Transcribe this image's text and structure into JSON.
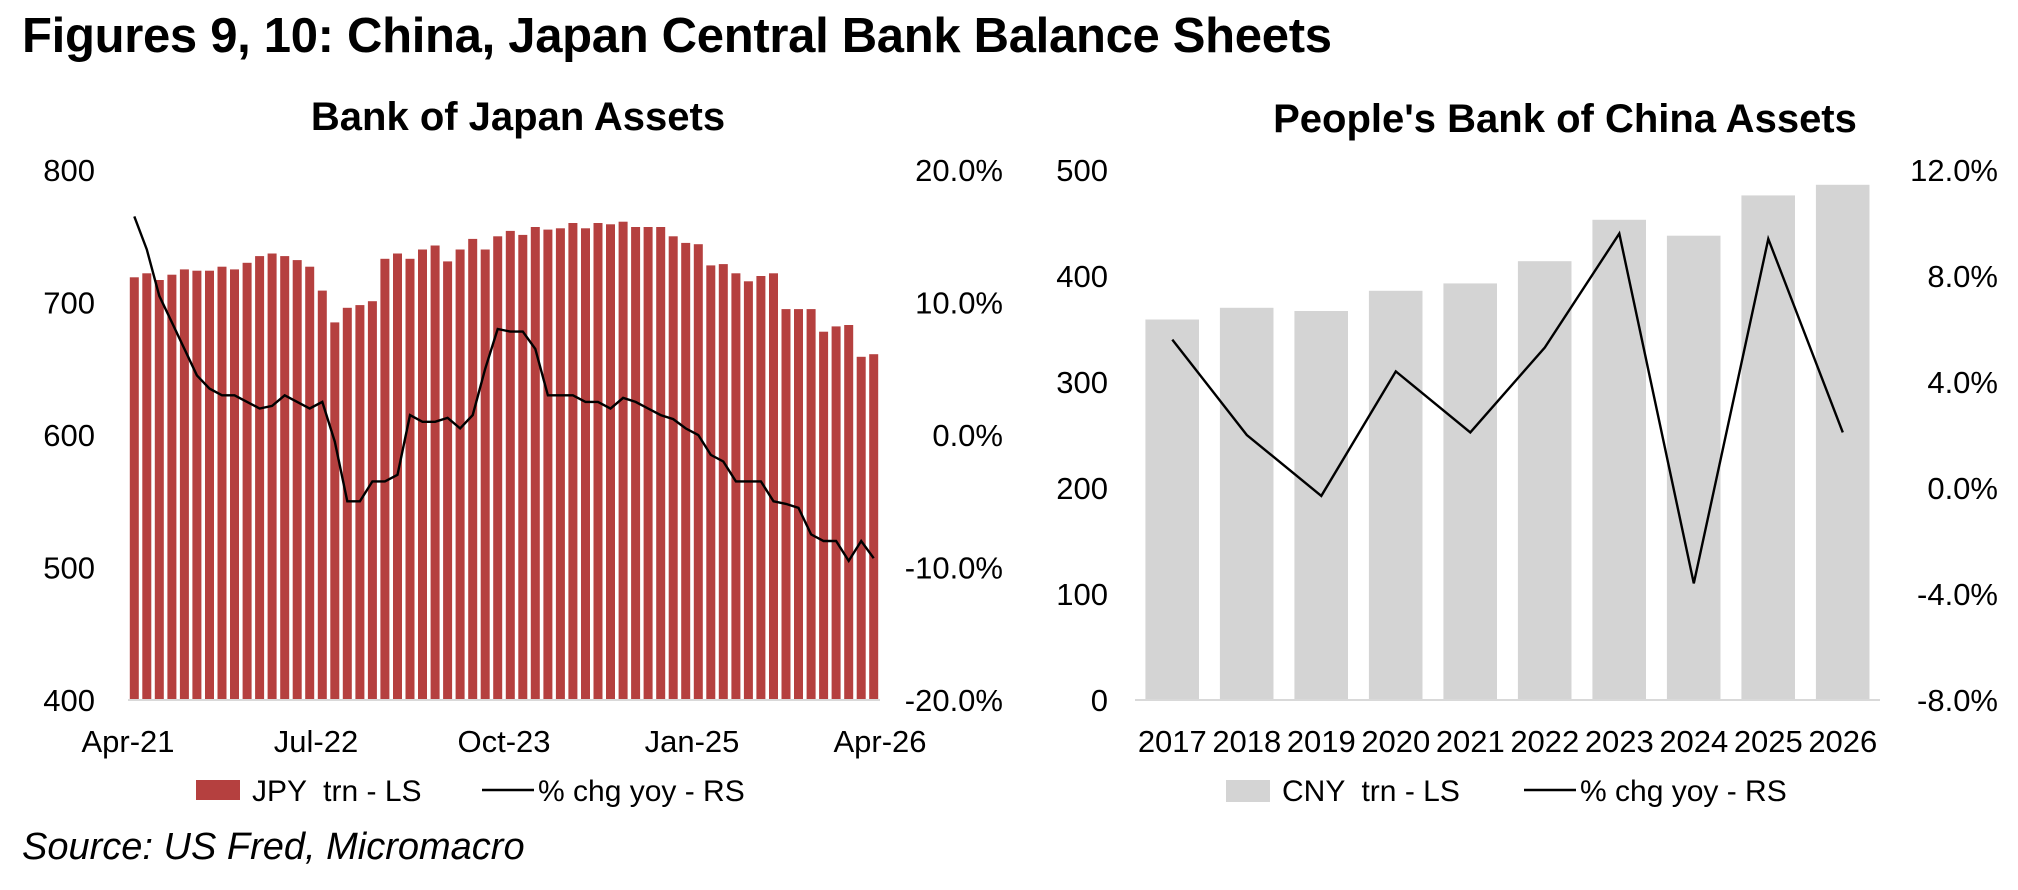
{
  "figure_title": "Figures 9, 10: China, Japan Central Bank Balance Sheets",
  "source": "Source: US Fred, Micromacro",
  "colors": {
    "boj_bar": "#b5403f",
    "pboc_bar": "#d4d4d4",
    "line": "#000000",
    "axis": "#d9d9d9"
  },
  "chart_data": [
    {
      "type": "bar",
      "title": "Bank of Japan Assets",
      "legend_position": "bottom",
      "grid": false,
      "x_tick_labels": [
        "Apr-21",
        "Jul-22",
        "Oct-23",
        "Jan-25",
        "Apr-26"
      ],
      "y_left_ticks": [
        "800",
        "700",
        "600",
        "500",
        "400"
      ],
      "y_left_lim": [
        400,
        800
      ],
      "y_right_ticks": [
        "20.0%",
        "10.0%",
        "0.0%",
        "-10.0%",
        "-20.0%"
      ],
      "y_right_lim": [
        -20,
        20
      ],
      "series": [
        {
          "name": "JPY  trn - LS",
          "type": "bar",
          "axis": "left",
          "values": [
            719,
            722,
            717,
            721,
            725,
            724,
            724,
            727,
            725,
            730,
            735,
            737,
            735,
            732,
            727,
            709,
            685,
            696,
            698,
            701,
            733,
            737,
            733,
            740,
            743,
            731,
            740,
            748,
            740,
            750,
            754,
            751,
            757,
            755,
            756,
            760,
            756,
            760,
            759,
            761,
            757,
            757,
            757,
            750,
            745,
            744,
            728,
            729,
            722,
            716,
            720,
            722,
            695,
            695,
            695,
            678,
            682,
            683,
            659,
            661
          ]
        },
        {
          "name": "% chg yoy - RS",
          "type": "line",
          "axis": "right",
          "values": [
            16.5,
            14.0,
            10.5,
            8.5,
            6.5,
            4.5,
            3.5,
            3.0,
            3.0,
            2.5,
            2.0,
            2.2,
            3.0,
            2.5,
            2.0,
            2.5,
            -0.5,
            -5.0,
            -5.0,
            -3.5,
            -3.5,
            -3.0,
            1.5,
            1.0,
            1.0,
            1.3,
            0.5,
            1.5,
            5.0,
            8.0,
            7.8,
            7.8,
            6.5,
            3.0,
            3.0,
            3.0,
            2.5,
            2.5,
            2.0,
            2.8,
            2.5,
            2.0,
            1.5,
            1.2,
            0.5,
            0.0,
            -1.5,
            -2.0,
            -3.5,
            -3.5,
            -3.5,
            -5.0,
            -5.2,
            -5.5,
            -7.5,
            -8.0,
            -8.0,
            -9.5,
            -8.0,
            -9.3
          ]
        }
      ]
    },
    {
      "type": "bar",
      "title": "People's Bank of China Assets",
      "legend_position": "bottom",
      "grid": false,
      "categories": [
        "2017",
        "2018",
        "2019",
        "2020",
        "2021",
        "2022",
        "2023",
        "2024",
        "2025",
        "2026"
      ],
      "y_left_ticks": [
        "500",
        "400",
        "300",
        "200",
        "100",
        "0"
      ],
      "y_left_lim": [
        0,
        500
      ],
      "y_right_ticks": [
        "12.0%",
        "8.0%",
        "4.0%",
        "0.0%",
        "-4.0%",
        "-8.0%"
      ],
      "y_right_lim": [
        -8,
        12
      ],
      "series": [
        {
          "name": "CNY  trn - LS",
          "type": "bar",
          "axis": "left",
          "values": [
            359,
            370,
            367,
            386,
            393,
            414,
            453,
            438,
            476,
            486
          ]
        },
        {
          "name": "% chg yoy - RS",
          "type": "line",
          "axis": "right",
          "values": [
            5.6,
            2.0,
            -0.3,
            4.4,
            2.1,
            5.3,
            9.6,
            -3.6,
            9.4,
            2.1
          ]
        }
      ]
    }
  ]
}
